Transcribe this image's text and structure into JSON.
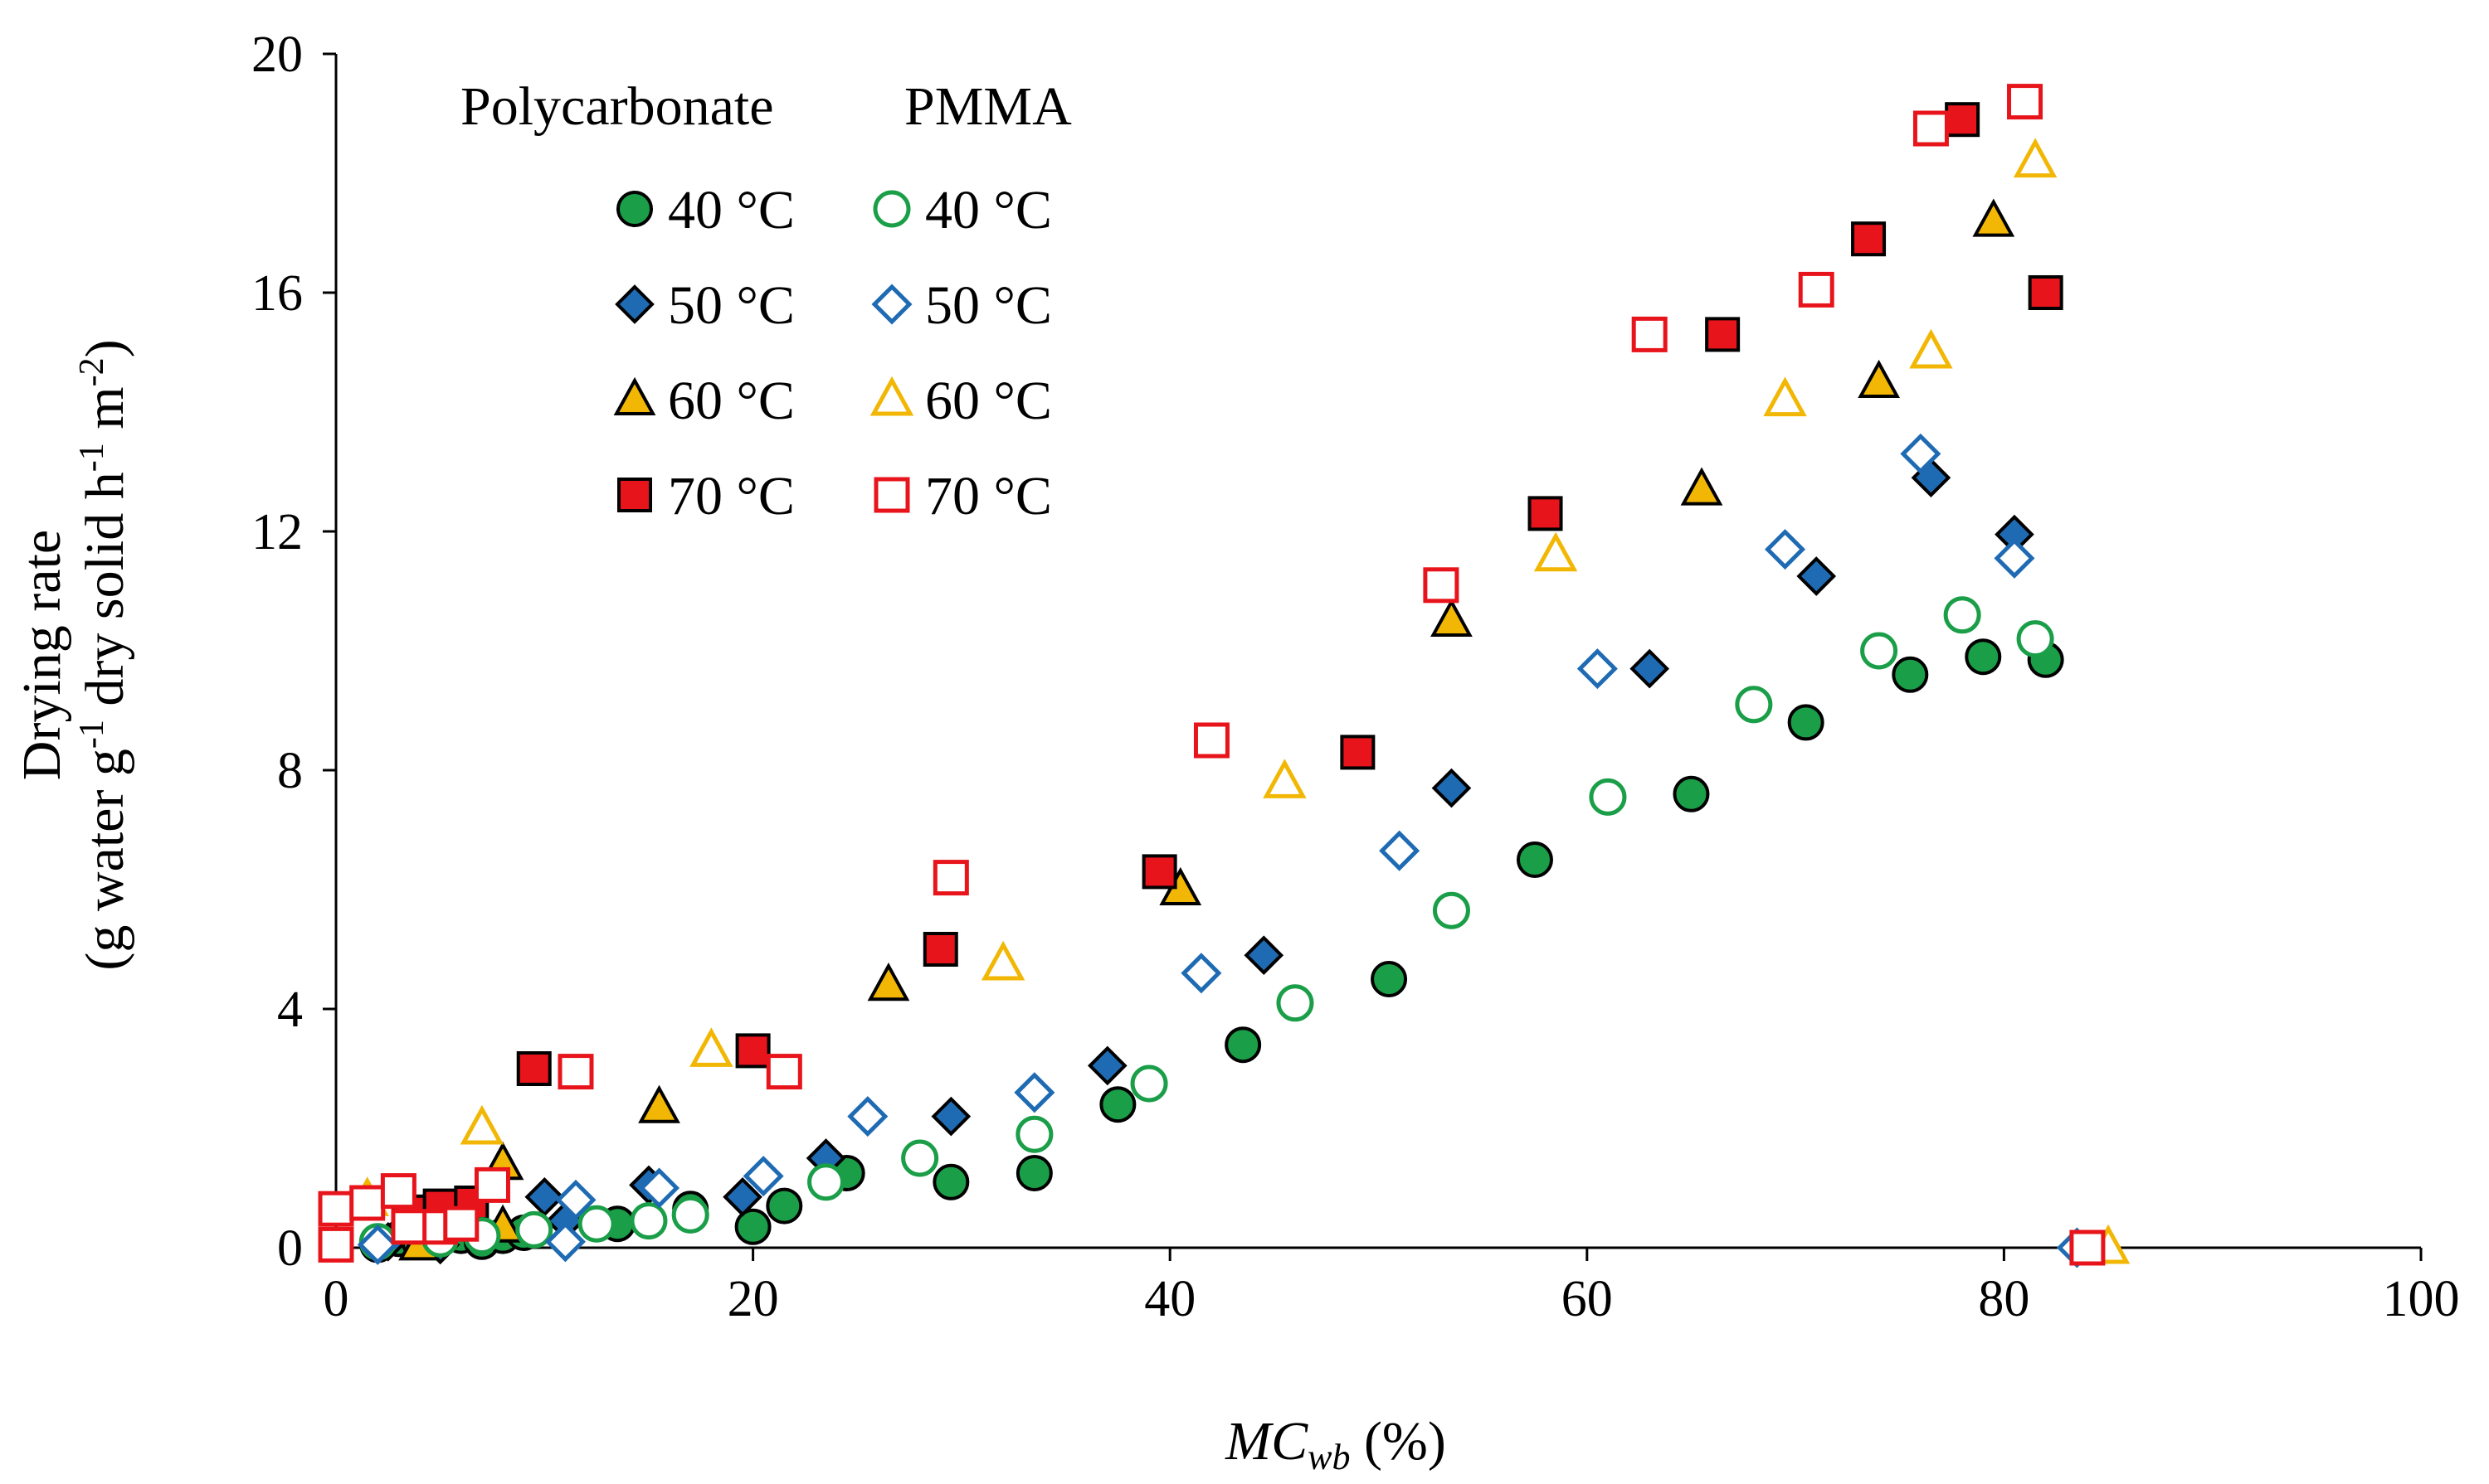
{
  "chart_data": {
    "type": "scatter",
    "xlabel": {
      "main": "MC",
      "sub": "wb",
      "rest": " (%)"
    },
    "ylabel": {
      "line1": "Drying rate",
      "line2_a": "(g water g",
      "sup1": "-1",
      "line2_b": " dry solid h",
      "sup2": "-1",
      "line2_c": " m",
      "sup3": "-2",
      "line2_d": ")"
    },
    "xlim": [
      0,
      100
    ],
    "ylim": [
      0,
      20
    ],
    "xticks": [
      "0",
      "20",
      "40",
      "60",
      "80",
      "100"
    ],
    "yticks": [
      "0",
      "4",
      "8",
      "12",
      "16",
      "20"
    ],
    "legend": {
      "position": "top-left",
      "headers": [
        "Polycarbonate",
        "PMMA"
      ]
    },
    "series": [
      {
        "name": "40 °C",
        "material": "Polycarbonate",
        "marker": "circle",
        "filled": true,
        "color": "#1a9e48",
        "x": [
          2,
          3,
          4,
          6,
          7,
          8,
          9,
          13.5,
          17,
          20,
          21.5,
          24.5,
          29.5,
          33.5,
          37.5,
          43.5,
          50.5,
          57.5,
          65,
          70.5,
          75.5,
          79,
          82
        ],
        "y": [
          0.05,
          0.15,
          0.1,
          0.2,
          0.1,
          0.2,
          0.25,
          0.4,
          0.65,
          0.35,
          0.7,
          1.25,
          1.1,
          1.25,
          2.4,
          3.4,
          4.5,
          6.5,
          7.6,
          8.8,
          9.6,
          9.9,
          9.85
        ]
      },
      {
        "name": "40 °C",
        "material": "PMMA",
        "marker": "circle",
        "filled": false,
        "color": "#1a9e48",
        "x": [
          2,
          5,
          7,
          9.5,
          12.5,
          15,
          17,
          23.5,
          28,
          33.5,
          39,
          46,
          53.5,
          61,
          68,
          74,
          78,
          81.5
        ],
        "y": [
          0.1,
          0.15,
          0.2,
          0.3,
          0.4,
          0.45,
          0.55,
          1.1,
          1.5,
          1.9,
          2.75,
          4.1,
          5.65,
          7.55,
          9.1,
          10,
          10.6,
          10.2
        ]
      },
      {
        "name": "50 °C",
        "material": "Polycarbonate",
        "marker": "diamond",
        "filled": true,
        "color": "#1f6bb3",
        "x": [
          2.5,
          5,
          10,
          11,
          15,
          19.5,
          23.5,
          29.5,
          37,
          44.5,
          53.5,
          63,
          71,
          76.5,
          80.5
        ],
        "y": [
          0.1,
          0.05,
          0.85,
          0.45,
          1.05,
          0.85,
          1.5,
          2.2,
          3.05,
          4.9,
          7.7,
          9.7,
          11.25,
          12.9,
          11.95
        ]
      },
      {
        "name": "50 °C",
        "material": "PMMA",
        "marker": "diamond",
        "filled": false,
        "color": "#1f6bb3",
        "x": [
          2,
          11,
          11.5,
          15.5,
          20.5,
          25.5,
          33.5,
          41.5,
          51,
          60.5,
          69.5,
          76,
          80.5,
          83.5
        ],
        "y": [
          0.05,
          0.1,
          0.8,
          1,
          1.2,
          2.2,
          2.6,
          4.6,
          6.65,
          9.7,
          11.7,
          13.3,
          11.55,
          0
        ]
      },
      {
        "name": "60 °C",
        "material": "Polycarbonate",
        "marker": "triangle",
        "filled": true,
        "color": "#f2b705",
        "x": [
          4,
          8,
          8,
          15.5,
          26.5,
          40.5,
          53.5,
          65.5,
          74,
          79.5
        ],
        "y": [
          0.05,
          0.35,
          1.4,
          2.35,
          4.4,
          6,
          10.5,
          12.7,
          14.5,
          17.2
        ]
      },
      {
        "name": "60 °C",
        "material": "PMMA",
        "marker": "triangle",
        "filled": false,
        "color": "#f2b705",
        "x": [
          1.5,
          7,
          18,
          32,
          45.5,
          58.5,
          69.5,
          76.5,
          81.5,
          85
        ],
        "y": [
          0.8,
          2,
          3.3,
          4.75,
          7.8,
          11.6,
          14.2,
          15,
          18.2,
          0
        ]
      },
      {
        "name": "70 °C",
        "material": "Polycarbonate",
        "marker": "square",
        "filled": true,
        "color": "#e8141b",
        "x": [
          3.5,
          5,
          6.5,
          9.5,
          20,
          29,
          39.5,
          49,
          58,
          66.5,
          73.5,
          78,
          82,
          84
        ],
        "y": [
          0.6,
          0.7,
          0.75,
          3,
          3.3,
          5,
          6.3,
          8.3,
          12.3,
          15.3,
          16.9,
          18.9,
          16,
          0
        ]
      },
      {
        "name": "70 °C",
        "material": "PMMA",
        "marker": "square",
        "filled": false,
        "color": "#e8141b",
        "x": [
          0,
          0,
          1.5,
          3,
          3.5,
          5,
          6,
          7.5,
          11.5,
          21.5,
          29.5,
          42,
          53,
          63,
          71,
          76.5,
          81,
          84
        ],
        "y": [
          0.05,
          0.65,
          0.75,
          0.95,
          0.35,
          0.35,
          0.4,
          1.05,
          2.95,
          2.95,
          6.2,
          8.5,
          11.1,
          15.3,
          16.05,
          18.75,
          19.2,
          0
        ]
      }
    ]
  }
}
